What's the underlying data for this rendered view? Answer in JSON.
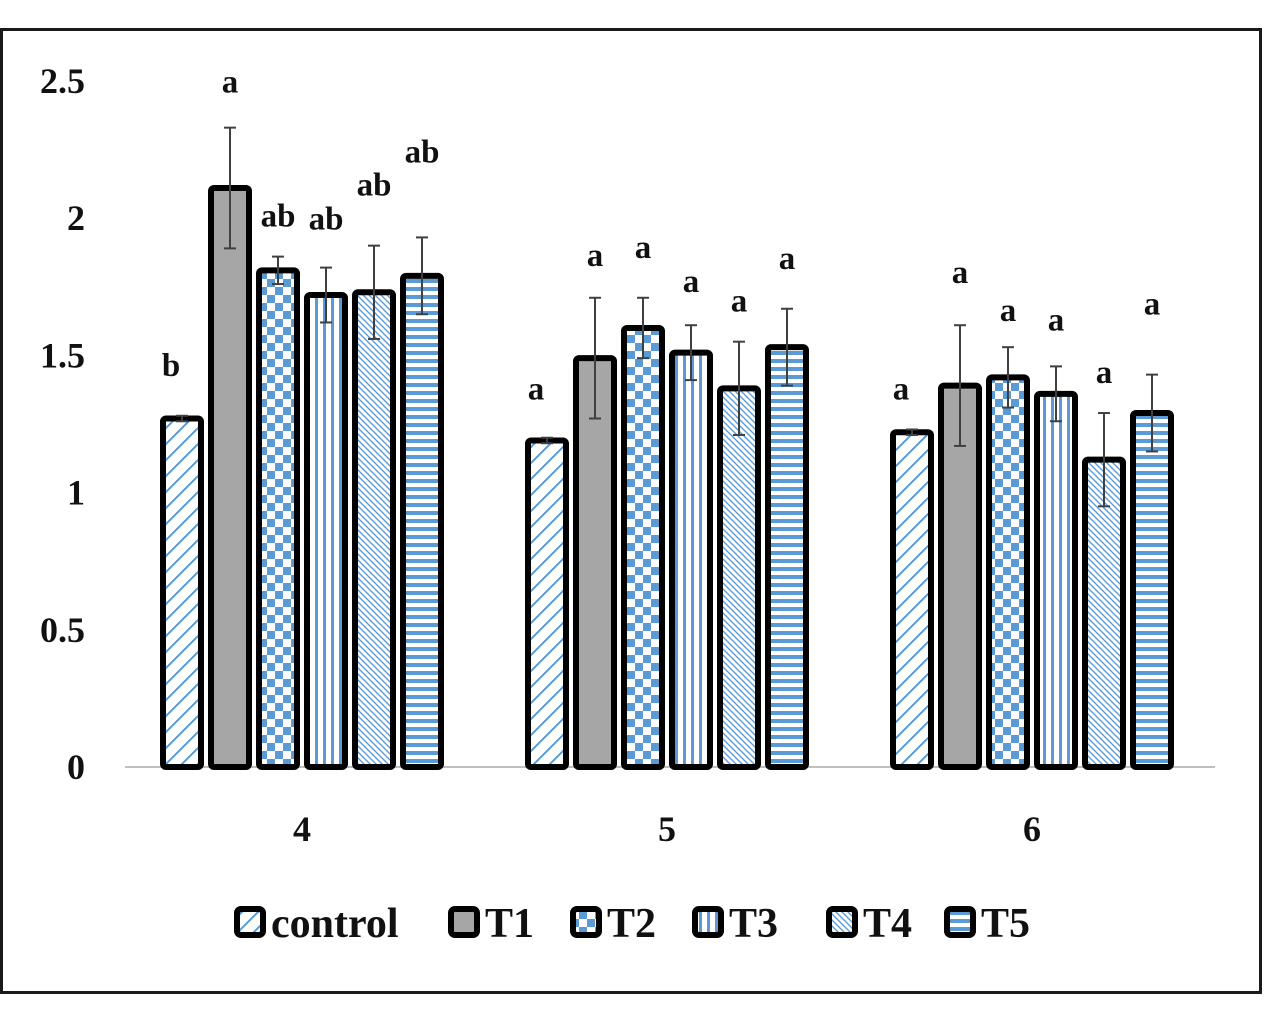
{
  "chart_data": {
    "type": "bar",
    "categories": [
      "4",
      "5",
      "6"
    ],
    "y_ticks": [
      "0",
      "0.5",
      "1",
      "1.5",
      "2",
      "2.5"
    ],
    "ylim": [
      0,
      2.5
    ],
    "grid": false,
    "legend_position": "bottom",
    "series": [
      {
        "name": "control",
        "pattern": "diag-sparse",
        "color": "#5b9bd5",
        "values": [
          1.27,
          1.19,
          1.22
        ],
        "errors": [
          0.01,
          0.01,
          0.01
        ],
        "labels": [
          "b",
          "a",
          "a"
        ]
      },
      {
        "name": "T1",
        "pattern": "solid",
        "color": "#a6a6a6",
        "values": [
          2.11,
          1.49,
          1.39
        ],
        "errors": [
          0.22,
          0.22,
          0.22
        ],
        "labels": [
          "a",
          "a",
          "a"
        ]
      },
      {
        "name": "T2",
        "pattern": "checker",
        "color": "#5b9bd5",
        "values": [
          1.81,
          1.6,
          1.42
        ],
        "errors": [
          0.05,
          0.11,
          0.11
        ],
        "labels": [
          "ab",
          "a",
          "a"
        ]
      },
      {
        "name": "T3",
        "pattern": "vertical",
        "color": "#5b9bd5",
        "values": [
          1.72,
          1.51,
          1.36
        ],
        "errors": [
          0.1,
          0.1,
          0.1
        ],
        "labels": [
          "ab",
          "a",
          "a"
        ]
      },
      {
        "name": "T4",
        "pattern": "diag-dense",
        "color": "#5b9bd5",
        "values": [
          1.73,
          1.38,
          1.12
        ],
        "errors": [
          0.17,
          0.17,
          0.17
        ],
        "labels": [
          "ab",
          "a",
          "a"
        ]
      },
      {
        "name": "T5",
        "pattern": "horizontal",
        "color": "#5b9bd5",
        "values": [
          1.79,
          1.53,
          1.29
        ],
        "errors": [
          0.14,
          0.14,
          0.14
        ],
        "labels": [
          "ab",
          "a",
          "a"
        ]
      }
    ]
  }
}
